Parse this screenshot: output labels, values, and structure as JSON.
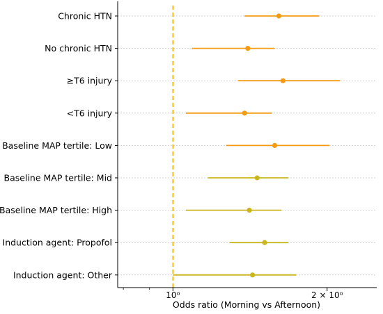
{
  "chart_data": {
    "type": "forest",
    "xlabel": "Odds ratio (Morning vs Afternoon)",
    "x_scale": "log",
    "xlim": [
      0.78,
      2.5
    ],
    "x_ticks": [
      {
        "value": 1,
        "label": "10⁰"
      },
      {
        "value": 2,
        "label": "2 × 10⁰"
      }
    ],
    "x_minor_ticks": [
      0.8,
      0.9
    ],
    "reference_line": {
      "value": 1,
      "style": "dashed",
      "color": "#f0a500"
    },
    "grid": "horizontal dotted",
    "rows": [
      {
        "label": "Chronic HTN",
        "or": 1.61,
        "lo": 1.38,
        "hi": 1.93,
        "color": "#f39c12"
      },
      {
        "label": "No chronic HTN",
        "or": 1.4,
        "lo": 1.09,
        "hi": 1.58,
        "color": "#f39c12"
      },
      {
        "label": "≥T6 injury",
        "or": 1.64,
        "lo": 1.34,
        "hi": 2.12,
        "color": "#f39c12"
      },
      {
        "label": "<T6 injury",
        "or": 1.38,
        "lo": 1.06,
        "hi": 1.56,
        "color": "#f39c12"
      },
      {
        "label": "Baseline MAP tertile: Low",
        "or": 1.58,
        "lo": 1.27,
        "hi": 2.02,
        "color": "#f39c12"
      },
      {
        "label": "Baseline MAP tertile: Mid",
        "or": 1.46,
        "lo": 1.17,
        "hi": 1.68,
        "color": "#c9b61c"
      },
      {
        "label": "Baseline MAP tertile: High",
        "or": 1.41,
        "lo": 1.06,
        "hi": 1.63,
        "color": "#c9b61c"
      },
      {
        "label": "Induction agent: Propofol",
        "or": 1.51,
        "lo": 1.29,
        "hi": 1.68,
        "color": "#c9b61c"
      },
      {
        "label": "Induction agent: Other",
        "or": 1.43,
        "lo": 1.0,
        "hi": 1.74,
        "color": "#c9b61c"
      }
    ]
  }
}
